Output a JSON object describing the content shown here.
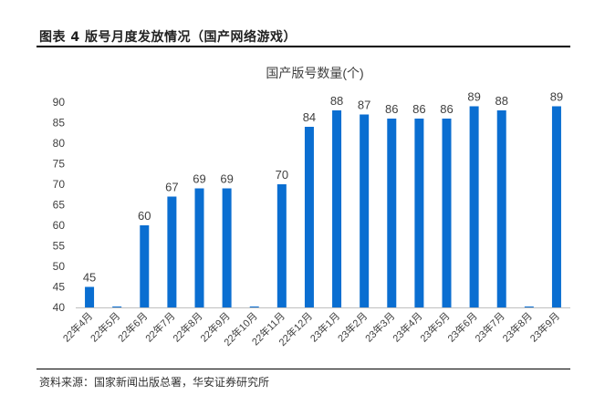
{
  "figure": {
    "title": "图表 4 版号月度发放情况（国产网络游戏）",
    "source": "资料来源：国家新闻出版总署，华安证券研究所"
  },
  "colors": {
    "bar": "#0a6ed1",
    "axis": "#bfbfbf",
    "text": "#404040"
  },
  "chart_data": {
    "type": "bar",
    "title": "国产版号数量(个)",
    "categories": [
      "22年4月",
      "22年5月",
      "22年6月",
      "22年7月",
      "22年8月",
      "22年9月",
      "22年10月",
      "22年11月",
      "22年12月",
      "23年1月",
      "23年2月",
      "23年3月",
      "23年4月",
      "23年5月",
      "23年6月",
      "23年7月",
      "23年8月",
      "23年9月"
    ],
    "values": [
      45,
      null,
      60,
      67,
      69,
      69,
      null,
      70,
      84,
      88,
      87,
      86,
      86,
      86,
      89,
      88,
      null,
      89
    ],
    "data_labels": [
      "45",
      "",
      "60",
      "67",
      "69",
      "69",
      "",
      "70",
      "84",
      "88",
      "87",
      "86",
      "86",
      "86",
      "89",
      "88",
      "",
      "89"
    ],
    "ylim": [
      40,
      90
    ],
    "yticks": [
      "40",
      "45",
      "50",
      "55",
      "60",
      "65",
      "70",
      "75",
      "80",
      "85",
      "90"
    ],
    "grid": false,
    "legend": "none"
  }
}
